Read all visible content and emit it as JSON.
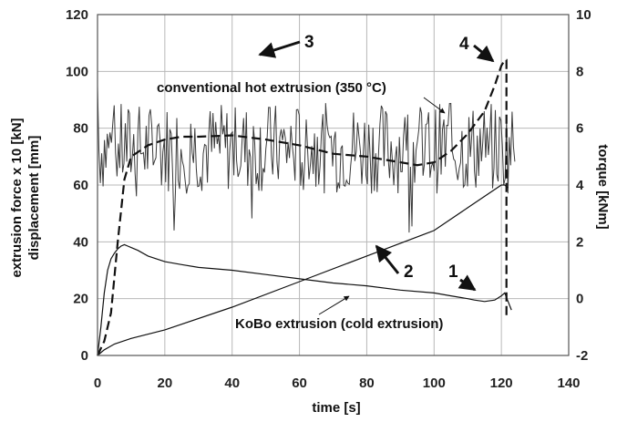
{
  "chart_data": {
    "type": "line",
    "xlabel": "time [s]",
    "ylabel_left": [
      "extrusion force x 10 [kN]",
      "displacement [mm]"
    ],
    "ylabel_right": "torque [kNm]",
    "xlim": [
      0,
      140
    ],
    "ylim_left": [
      0,
      120
    ],
    "ylim_right": [
      -2,
      10
    ],
    "x_ticks": [
      0,
      20,
      40,
      60,
      80,
      100,
      120,
      140
    ],
    "y_ticks_left": [
      0,
      20,
      40,
      60,
      80,
      100,
      120
    ],
    "y_ticks_right": [
      -2,
      0,
      2,
      4,
      6,
      8,
      10
    ],
    "grid": true,
    "series": [
      {
        "key": "conventional",
        "axis": "left",
        "style": "dashed",
        "x": [
          0,
          2,
          4,
          6,
          8,
          10,
          15,
          20,
          25,
          30,
          40,
          50,
          60,
          70,
          80,
          85,
          90,
          95,
          100,
          105,
          110,
          115,
          118,
          120,
          121,
          121.5,
          121.5
        ],
        "y": [
          0,
          5,
          15,
          40,
          62,
          70,
          74,
          76,
          77,
          77,
          77.5,
          76,
          74,
          71,
          70,
          69,
          68,
          67,
          68,
          72,
          78,
          86,
          95,
          102,
          104,
          104,
          13
        ]
      },
      {
        "key": "kobo_force",
        "axis": "left",
        "style": "solid",
        "x": [
          0,
          1,
          2,
          3,
          4,
          5,
          6,
          7,
          8,
          9,
          10,
          12,
          15,
          20,
          25,
          30,
          40,
          50,
          60,
          70,
          80,
          90,
          100,
          105,
          110,
          112,
          115,
          118,
          120,
          121,
          122,
          123
        ],
        "y": [
          0,
          10,
          22,
          30,
          34,
          36,
          37.5,
          38.5,
          39,
          38.5,
          38,
          37,
          35,
          33,
          32,
          31,
          30,
          28.5,
          27,
          25.5,
          24.5,
          23,
          22,
          21,
          20,
          19.5,
          19,
          19.5,
          21,
          22,
          19,
          16
        ]
      },
      {
        "key": "displacement",
        "axis": "left",
        "style": "solid",
        "x": [
          0,
          2,
          5,
          10,
          20,
          40,
          60,
          80,
          100,
          110,
          120,
          121,
          122
        ],
        "y": [
          0,
          2,
          4,
          6,
          9,
          17,
          26,
          35,
          44,
          52,
          60,
          60,
          59
        ]
      },
      {
        "key": "torque",
        "axis": "right",
        "style": "noisy",
        "x_range": [
          0,
          124
        ],
        "mean": 5.3,
        "amplitude": 1.6,
        "start_value": 7.5,
        "seed": 7
      }
    ],
    "annotations": [
      {
        "key": "label_conventional",
        "text": "conventional hot extrusion (350 °C)"
      },
      {
        "key": "label_kobo",
        "text": "KoBo extrusion (cold extrusion)"
      },
      {
        "key": "marker_1",
        "text": "1"
      },
      {
        "key": "marker_2",
        "text": "2"
      },
      {
        "key": "marker_3",
        "text": "3"
      },
      {
        "key": "marker_4",
        "text": "4"
      }
    ]
  }
}
